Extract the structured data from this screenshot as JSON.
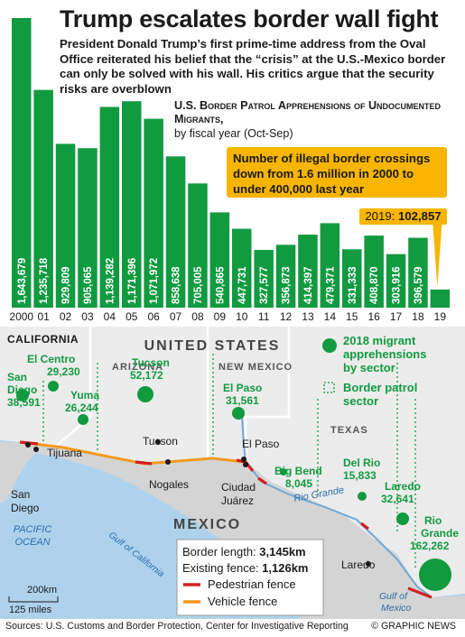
{
  "title": "Trump escalates border wall fight",
  "intro": "President Donald Trump’s first prime-time address from the Oval Office reiterated his belief that the “crisis” at the U.S.-Mexico border can only be solved with his wall. His critics argue that the security risks are overblown",
  "chart_data": {
    "type": "bar",
    "title": "U.S. Border Patrol Apprehensions of Undocumented Migrants,",
    "subtitle": "by fiscal year (Oct-Sep)",
    "categories": [
      "2000",
      "01",
      "02",
      "03",
      "04",
      "05",
      "06",
      "07",
      "08",
      "09",
      "10",
      "11",
      "12",
      "13",
      "14",
      "15",
      "16",
      "17",
      "18",
      "19"
    ],
    "value_labels": [
      "1,643,679",
      "1,235,718",
      "929,809",
      "905,065",
      "1,139,282",
      "1,171,396",
      "1,071,972",
      "858,638",
      "705,005",
      "540,865",
      "447,731",
      "327,577",
      "356,873",
      "414,397",
      "479,371",
      "331,333",
      "408,870",
      "303,916",
      "396,579",
      ""
    ],
    "values": [
      1643679,
      1235718,
      929809,
      905065,
      1139282,
      1171396,
      1071972,
      858638,
      705005,
      540865,
      447731,
      327577,
      356873,
      414397,
      479371,
      331333,
      408870,
      303916,
      396579,
      102857
    ],
    "ylim": [
      0,
      1643679
    ],
    "grid": false,
    "bar_color": "#119a3f",
    "callout": "Number of illegal border crossings down from 1.6 million in 2000 to under 400,000 last year",
    "callout_color": "#f7b500",
    "note_2019_label": "2019: ",
    "note_2019_value": "102,857"
  },
  "map": {
    "country_us": "UNITED STATES",
    "country_mexico": "MEXICO",
    "ocean": [
      "PACIFIC",
      "OCEAN"
    ],
    "gulf_california": "Gulf of California",
    "gulf_mexico": [
      "Gulf of",
      "Mexico"
    ],
    "river": "Rio Grande",
    "states": [
      "CALIFORNIA",
      "ARIZONA",
      "NEW MEXICO",
      "TEXAS"
    ],
    "cities": [
      "Tucson",
      "El Paso",
      "Tijuana",
      "San",
      "Diego",
      "Nogales",
      "Ciudad",
      "Juárez",
      "Laredo"
    ],
    "sectors": [
      {
        "name": "El Centro",
        "value": "29,230"
      },
      {
        "name": "San Diego",
        "name_lines": [
          "San",
          "Diego"
        ],
        "value": "38,591"
      },
      {
        "name": "Yuma",
        "value": "26,244"
      },
      {
        "name": "Tucson",
        "value": "52,172"
      },
      {
        "name": "El Paso",
        "value": "31,561"
      },
      {
        "name": "Big Bend",
        "value": "8,045"
      },
      {
        "name": "Del Rio",
        "value": "15,833"
      },
      {
        "name": "Laredo",
        "value": "32,641"
      },
      {
        "name": "Rio Grande",
        "name_lines": [
          "Rio",
          "Grande"
        ],
        "value": "162,262"
      }
    ],
    "legend": {
      "circles": [
        "2018 migrant",
        "apprehensions",
        "by sector"
      ],
      "sector": [
        "Border patrol",
        "sector"
      ]
    },
    "info": {
      "border_length_label": "Border length: ",
      "border_length_value": "3,145km",
      "existing_fence_label": "Existing fence: ",
      "existing_fence_value": "1,126km",
      "pedestrian": "Pedestrian fence",
      "vehicle": "Vehicle fence",
      "pedestrian_color": "#d42020",
      "vehicle_color": "#f39a1e"
    },
    "scale": {
      "km": "200km",
      "miles": "125 miles"
    },
    "land_us": "#ececec",
    "land_mx": "#d4d4d4",
    "water": "#aed2ec",
    "accent_green": "#119a3f"
  },
  "sources": "Sources: U.S. Customs and Border Protection, Center for Investigative Reporting",
  "credit": "© GRAPHIC NEWS"
}
